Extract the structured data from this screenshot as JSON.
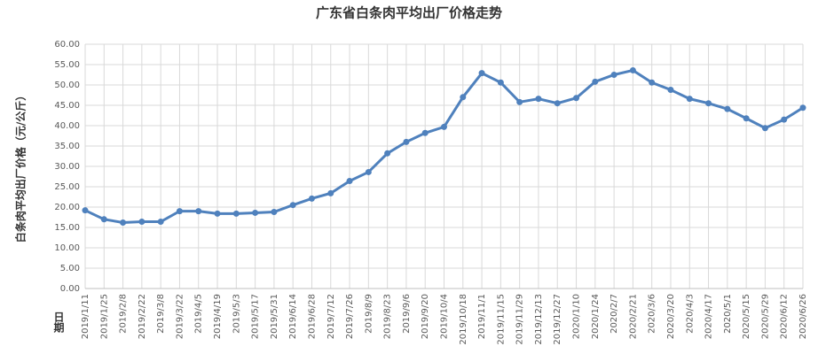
{
  "chart_data": {
    "type": "line",
    "title": "广东省白条肉平均出厂价格走势",
    "y_label": "白条肉平均出厂价格（元/公斤）",
    "x_label": "日期",
    "categories": [
      "2019/1/11",
      "2019/1/25",
      "2019/2/8",
      "2019/2/22",
      "2019/3/8",
      "2019/3/22",
      "2019/4/5",
      "2019/4/19",
      "2019/5/3",
      "2019/5/17",
      "2019/5/31",
      "2019/6/14",
      "2019/6/28",
      "2019/7/12",
      "2019/7/26",
      "2019/8/9",
      "2019/8/23",
      "2019/9/6",
      "2019/9/20",
      "2019/10/4",
      "2019/10/18",
      "2019/11/1",
      "2019/11/15",
      "2019/11/29",
      "2019/12/13",
      "2019/12/27",
      "2020/1/10",
      "2020/1/24",
      "2020/2/7",
      "2020/2/21",
      "2020/3/6",
      "2020/3/20",
      "2020/4/3",
      "2020/4/17",
      "2020/5/1",
      "2020/5/15",
      "2020/5/29",
      "2020/6/12",
      "2020/6/26"
    ],
    "series": [
      {
        "color": "#4f81bd",
        "values": [
          19.2,
          17.0,
          16.2,
          16.4,
          16.4,
          19.0,
          19.0,
          18.4,
          18.4,
          18.6,
          18.8,
          20.5,
          22.1,
          23.4,
          26.4,
          28.6,
          33.2,
          36.0,
          38.2,
          39.7,
          47.0,
          52.9,
          50.6,
          45.8,
          46.6,
          45.5,
          46.8,
          50.8,
          52.5,
          53.6,
          50.6,
          48.8,
          46.6,
          45.5,
          44.1,
          41.8,
          39.4,
          41.5,
          44.4
        ]
      }
    ],
    "ylim": [
      0,
      60
    ],
    "yticks": [
      {
        "value": 0,
        "label": "0.00"
      },
      {
        "value": 5,
        "label": "5.00"
      },
      {
        "value": 10,
        "label": "10.00"
      },
      {
        "value": 15,
        "label": "15.00"
      },
      {
        "value": 20,
        "label": "20.00"
      },
      {
        "value": 25,
        "label": "25.00"
      },
      {
        "value": 30,
        "label": "30.00"
      },
      {
        "value": 35,
        "label": "35.00"
      },
      {
        "value": 40,
        "label": "40.00"
      },
      {
        "value": 45,
        "label": "45.00"
      },
      {
        "value": 50,
        "label": "50.00"
      },
      {
        "value": 55,
        "label": "55.00"
      },
      {
        "value": 60,
        "label": "60.00"
      }
    ],
    "grid": true
  }
}
